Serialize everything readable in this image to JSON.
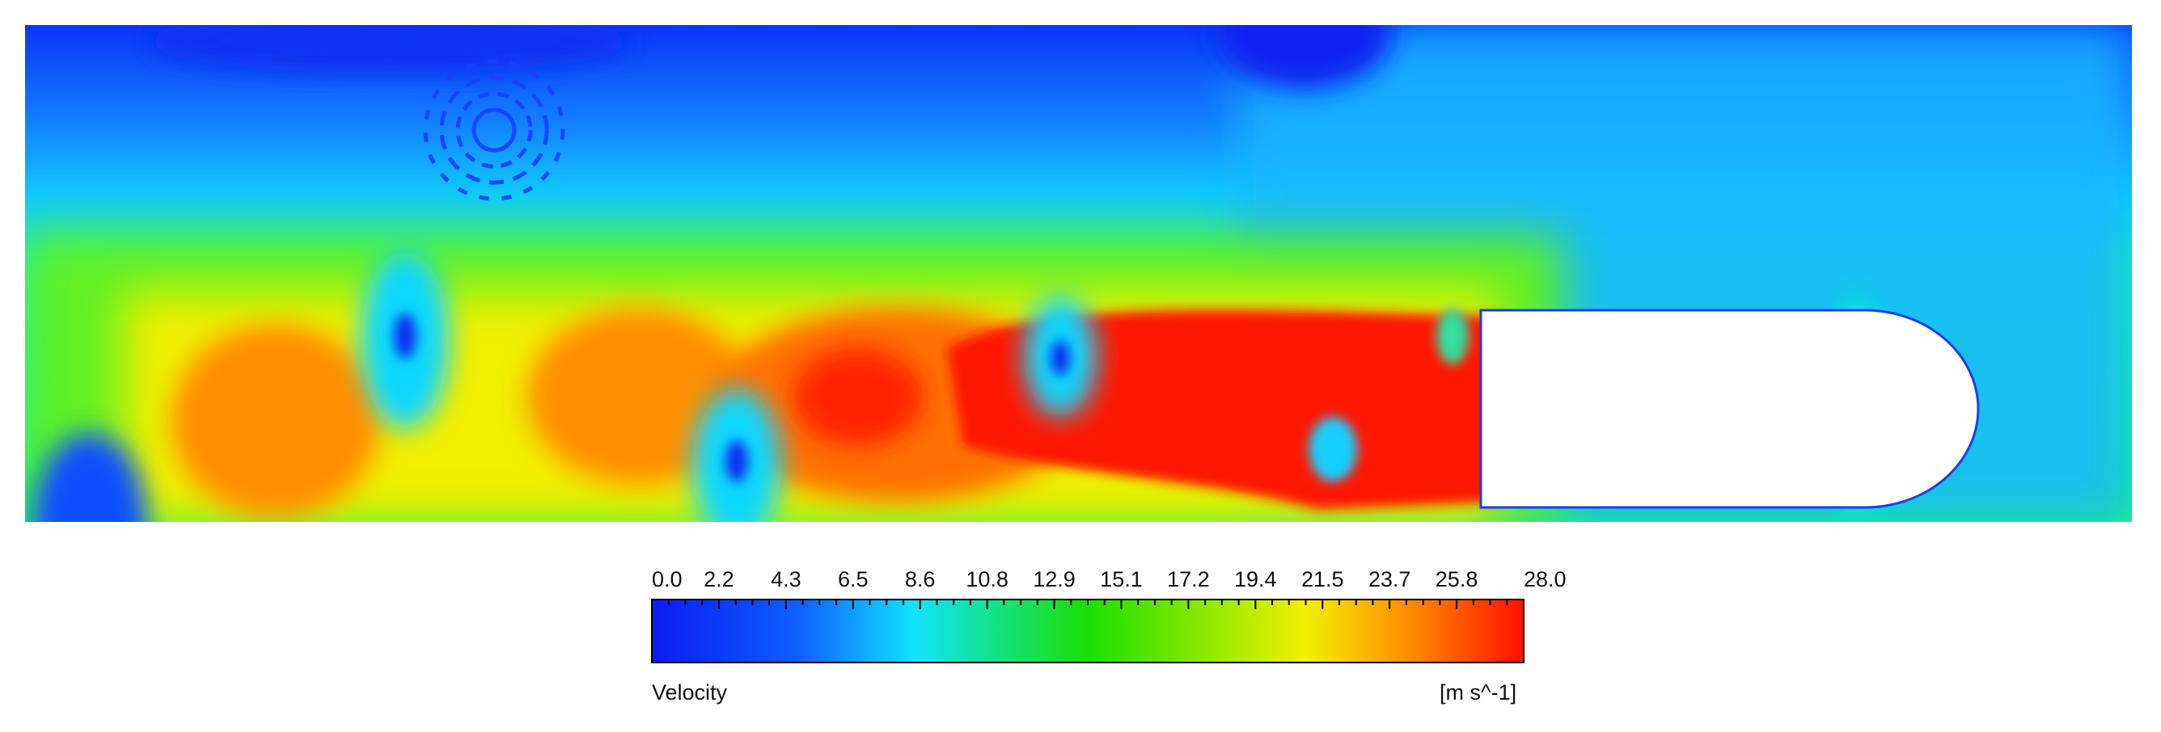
{
  "figure": {
    "quantity_label": "Velocity",
    "unit_label": "[m s^-1]",
    "colorbar": {
      "min": 0.0,
      "max": 28.0,
      "tick_labels": [
        "0.0",
        "2.2",
        "4.3",
        "6.5",
        "8.6",
        "10.8",
        "12.9",
        "15.1",
        "17.2",
        "19.4",
        "21.5",
        "23.7",
        "25.8",
        "28.0"
      ],
      "colors": {
        "low": "#0a1cf0",
        "blue": "#0f60ff",
        "cyan": "#12e3ff",
        "green": "#19e000",
        "yellow": "#f2f000",
        "orange": "#ff8a00",
        "high": "#ff1100"
      }
    }
  }
}
